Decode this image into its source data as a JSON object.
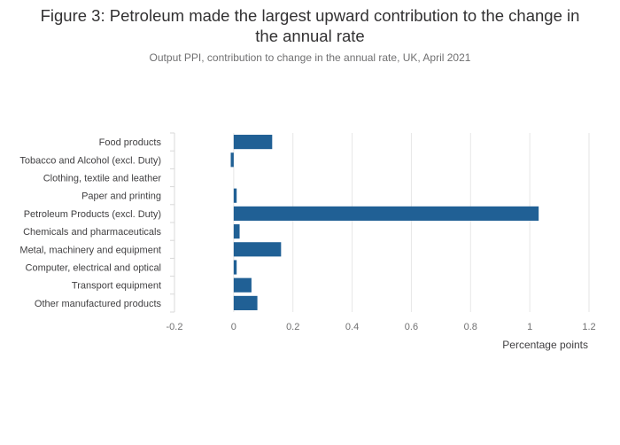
{
  "chart_data": {
    "type": "bar",
    "orientation": "horizontal",
    "title_lines": [
      "Figure 3: Petroleum made the largest upward contribution to the change in",
      "the annual rate"
    ],
    "subtitle": "Output PPI, contribution to change in the annual rate, UK, April 2021",
    "xlabel": "Percentage points",
    "ylabel": "",
    "xlim": [
      -0.2,
      1.2
    ],
    "x_ticks": [
      "-0.2",
      "0",
      "0.2",
      "0.4",
      "0.6",
      "0.8",
      "1",
      "1.2"
    ],
    "x_tick_values": [
      -0.2,
      0,
      0.2,
      0.4,
      0.6,
      0.8,
      1.0,
      1.2
    ],
    "grid": true,
    "bar_color": "#206095",
    "categories": [
      "Food products",
      "Tobacco and Alcohol (excl. Duty)",
      "Clothing, textile and leather",
      "Paper and printing",
      "Petroleum Products (excl. Duty)",
      "Chemicals and pharmaceuticals",
      "Metal, machinery and equipment",
      "Computer, electrical and optical",
      "Transport equipment",
      "Other manufactured products"
    ],
    "values": [
      0.13,
      -0.01,
      0.0,
      0.01,
      1.03,
      0.02,
      0.16,
      0.01,
      0.06,
      0.08
    ]
  }
}
